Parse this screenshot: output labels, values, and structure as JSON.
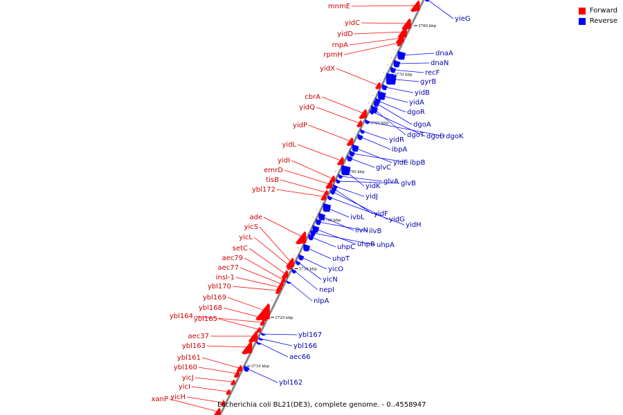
{
  "legend": {
    "forward_label": "Forward",
    "reverse_label": "Reverse",
    "forward_color": "#ff0000",
    "reverse_color": "#0000ff"
  },
  "footer": {
    "caption": "Escherichia coli BL21(DE3), complete genome. - 0..4558947"
  },
  "map": {
    "kbp_ticks": [
      {
        "label": "3780 kbp",
        "pos": 3780
      },
      {
        "label": "3770 kbp",
        "pos": 3770
      },
      {
        "label": "3760 kbp",
        "pos": 3760
      },
      {
        "label": "3750 kbp",
        "pos": 3750
      },
      {
        "label": "3740 kbp",
        "pos": 3740
      },
      {
        "label": "3730 kbp",
        "pos": 3730
      },
      {
        "label": "3720 kbp",
        "pos": 3720
      },
      {
        "label": "3710 kbp",
        "pos": 3710
      }
    ],
    "forward_genes": [
      "mnmE",
      "yidC",
      "yidD",
      "rnpA",
      "rpmH",
      "yidX",
      "cbrA",
      "yidQ",
      "yidP",
      "yidL",
      "yidI",
      "emrD",
      "tisB",
      "ybl172",
      "ade",
      "yicS",
      "yicL",
      "setC",
      "aec79",
      "aec77",
      "insI-1",
      "ybl170",
      "ybl169",
      "ybl168",
      "ybl164",
      "ybl165",
      "aec37",
      "ybl163",
      "ybl161",
      "ybl160",
      "yicJ",
      "yicI",
      "yicH",
      "xanP"
    ],
    "reverse_genes": [
      "yieG",
      "dnaA",
      "dnaN",
      "recF",
      "gyrB",
      "yidB",
      "yidA",
      "dgoR",
      "dgoA",
      "dgoT",
      "dgoD",
      "dgoK",
      "yidR",
      "ibpA",
      "yidE",
      "ibpB",
      "glvC",
      "yidK",
      "glvA",
      "glvB",
      "yidJ",
      "yidF",
      "yidG",
      "yidH",
      "ivbL",
      "ilvN",
      "ilvB",
      "uhpB",
      "uhpA",
      "uhpC",
      "uhpT",
      "yicO",
      "yicN",
      "nepI",
      "nlpA",
      "ybl167",
      "ybl166",
      "aec66",
      "ybl162"
    ]
  }
}
